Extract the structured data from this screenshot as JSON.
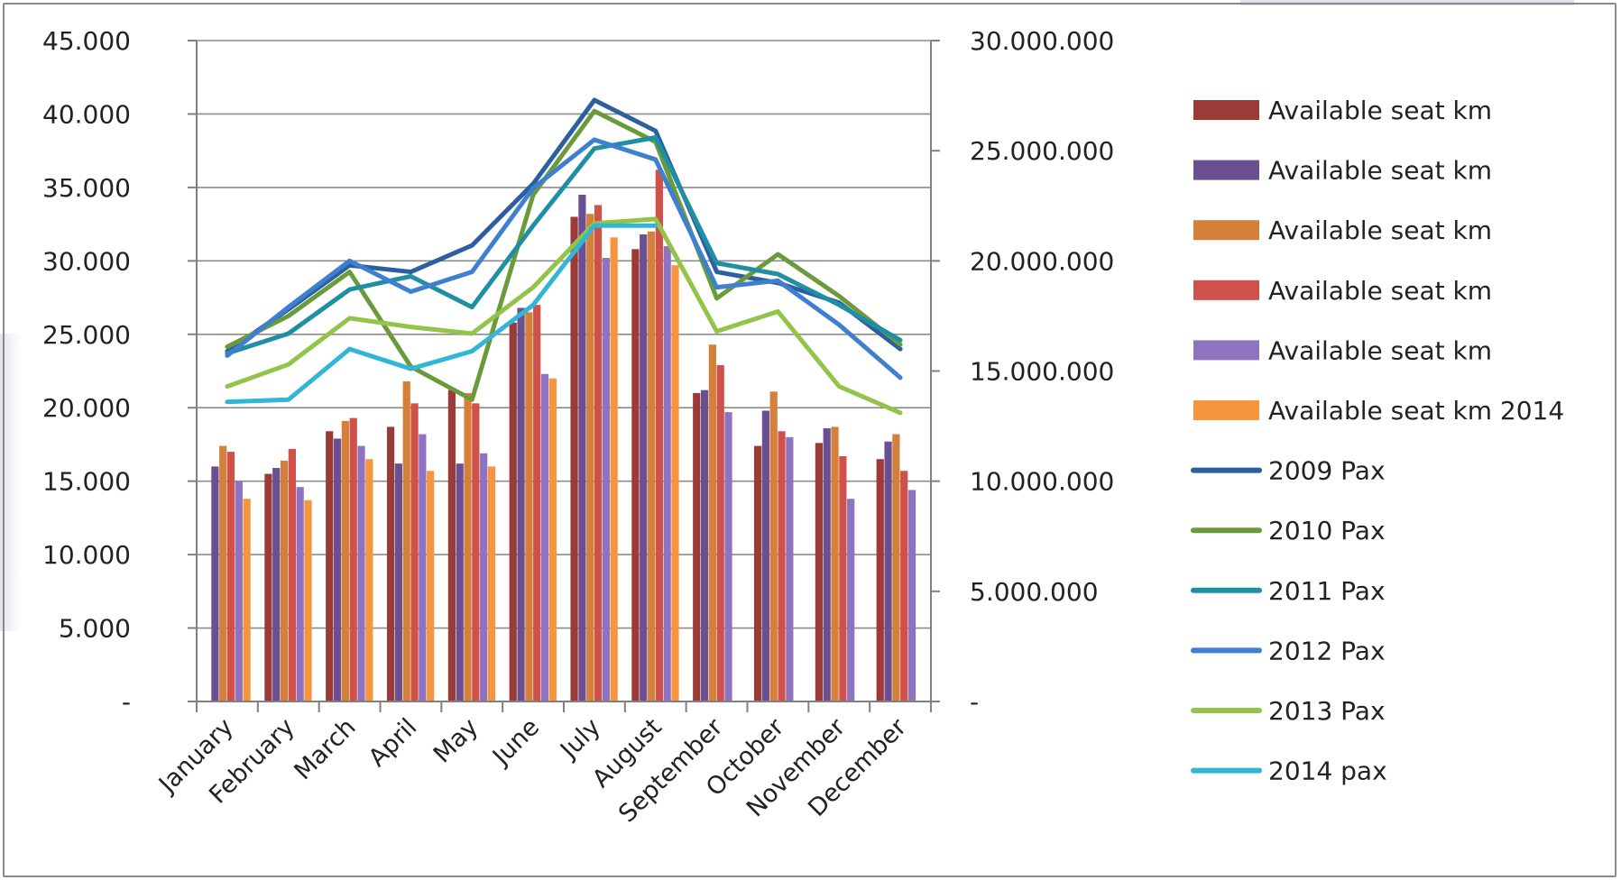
{
  "chart_data": {
    "type": "bar+line",
    "title": "",
    "xlabel": "",
    "ylabel": "",
    "categories": [
      "January",
      "February",
      "March",
      "April",
      "May",
      "June",
      "July",
      "August",
      "September",
      "October",
      "November",
      "December"
    ],
    "ylim_left": [
      0,
      45000
    ],
    "ylim_right": [
      0,
      30000000
    ],
    "left_tick_labels": [
      "-",
      "5.000",
      "10.000",
      "15.000",
      "20.000",
      "25.000",
      "30.000",
      "35.000",
      "40.000",
      "45.000"
    ],
    "right_tick_labels": [
      "-",
      "5.000.000",
      "10.000.000",
      "15.000.000",
      "20.000.000",
      "25.000.000",
      "30.000.000"
    ],
    "grid": "horizontal",
    "legend_position": "right",
    "bar_series": [
      {
        "name": "Available seat km",
        "color": "#9b3b38",
        "values": [
          0,
          15500,
          18400,
          18700,
          21200,
          25800,
          33000,
          30800,
          21000,
          17400,
          17600,
          16500
        ]
      },
      {
        "name": "Available seat km",
        "color": "#6a4f93",
        "values": [
          16000,
          15900,
          17900,
          16200,
          16200,
          26800,
          34500,
          31800,
          21200,
          19800,
          18600,
          17700
        ]
      },
      {
        "name": "Available seat km",
        "color": "#d4803a",
        "values": [
          17400,
          16400,
          19100,
          21800,
          21000,
          26500,
          33200,
          32000,
          24300,
          21100,
          18700,
          18200
        ]
      },
      {
        "name": "Available seat km",
        "color": "#d0504a",
        "values": [
          17000,
          17200,
          19300,
          20300,
          20300,
          27000,
          33800,
          36200,
          22900,
          18400,
          16700,
          15700
        ]
      },
      {
        "name": "Available seat km",
        "color": "#8d73c0",
        "values": [
          15000,
          14600,
          17400,
          18200,
          16900,
          22300,
          30200,
          31000,
          19700,
          18000,
          13800,
          14400
        ]
      },
      {
        "name": "Available seat km 2014",
        "color": "#f7953f",
        "values": [
          13800,
          13700,
          16500,
          15700,
          16000,
          22000,
          31600,
          29700,
          null,
          null,
          null,
          null
        ]
      }
    ],
    "line_series": [
      {
        "name": "2009 Pax",
        "color": "#2b5fa0",
        "values": [
          15900000,
          17800000,
          19800000,
          19500000,
          20700000,
          23500000,
          27300000,
          25900000,
          19500000,
          19000000,
          18100000,
          16000000
        ]
      },
      {
        "name": "2010 Pax",
        "color": "#6b9a3a",
        "values": [
          16100000,
          17500000,
          19500000,
          15200000,
          13700000,
          23000000,
          26800000,
          25400000,
          18300000,
          20300000,
          18400000,
          16200000
        ]
      },
      {
        "name": "2011 Pax",
        "color": "#1f8fa3",
        "values": [
          15800000,
          16700000,
          18700000,
          19300000,
          17900000,
          21600000,
          25100000,
          25600000,
          19900000,
          19400000,
          18000000,
          16400000
        ]
      },
      {
        "name": "2012 Pax",
        "color": "#3f7fd0",
        "values": [
          15700000,
          17900000,
          20000000,
          18600000,
          19500000,
          23300000,
          25500000,
          24600000,
          18800000,
          19100000,
          17100000,
          14700000
        ]
      },
      {
        "name": "2013 Pax",
        "color": "#93c449",
        "values": [
          14300000,
          15300000,
          17400000,
          17000000,
          16700000,
          18800000,
          21700000,
          21900000,
          16800000,
          17700000,
          14300000,
          13100000
        ]
      },
      {
        "name": "2014 pax",
        "color": "#32b6d6",
        "values": [
          13600000,
          13700000,
          16000000,
          15100000,
          15900000,
          18000000,
          21600000,
          21600000,
          null,
          null,
          null,
          null
        ]
      }
    ]
  }
}
